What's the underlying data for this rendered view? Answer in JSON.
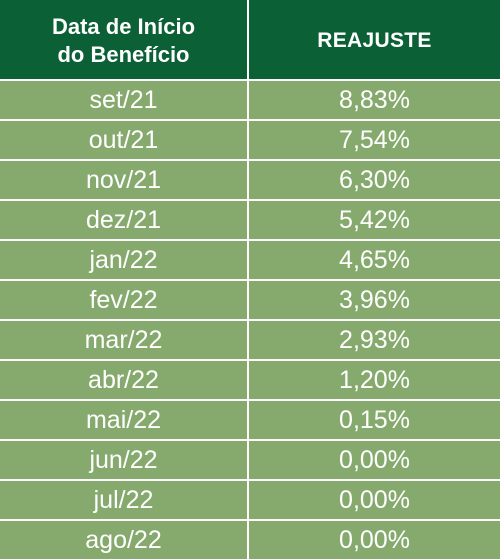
{
  "header": {
    "col1_line1": "Data de Início",
    "col1_line2": "do Benefício",
    "col2": "REAJUSTE"
  },
  "rows": [
    {
      "date": "set/21",
      "value": "8,83%"
    },
    {
      "date": "out/21",
      "value": "7,54%"
    },
    {
      "date": "nov/21",
      "value": "6,30%"
    },
    {
      "date": "dez/21",
      "value": "5,42%"
    },
    {
      "date": "jan/22",
      "value": "4,65%"
    },
    {
      "date": "fev/22",
      "value": "3,96%"
    },
    {
      "date": "mar/22",
      "value": "2,93%"
    },
    {
      "date": "abr/22",
      "value": "1,20%"
    },
    {
      "date": "mai/22",
      "value": "0,15%"
    },
    {
      "date": "jun/22",
      "value": "0,00%"
    },
    {
      "date": "jul/22",
      "value": "0,00%"
    },
    {
      "date": "ago/22",
      "value": "0,00%"
    }
  ],
  "colors": {
    "header_bg": "#0b6036",
    "row_bg": "#86aa6e",
    "text": "#ffffff"
  }
}
